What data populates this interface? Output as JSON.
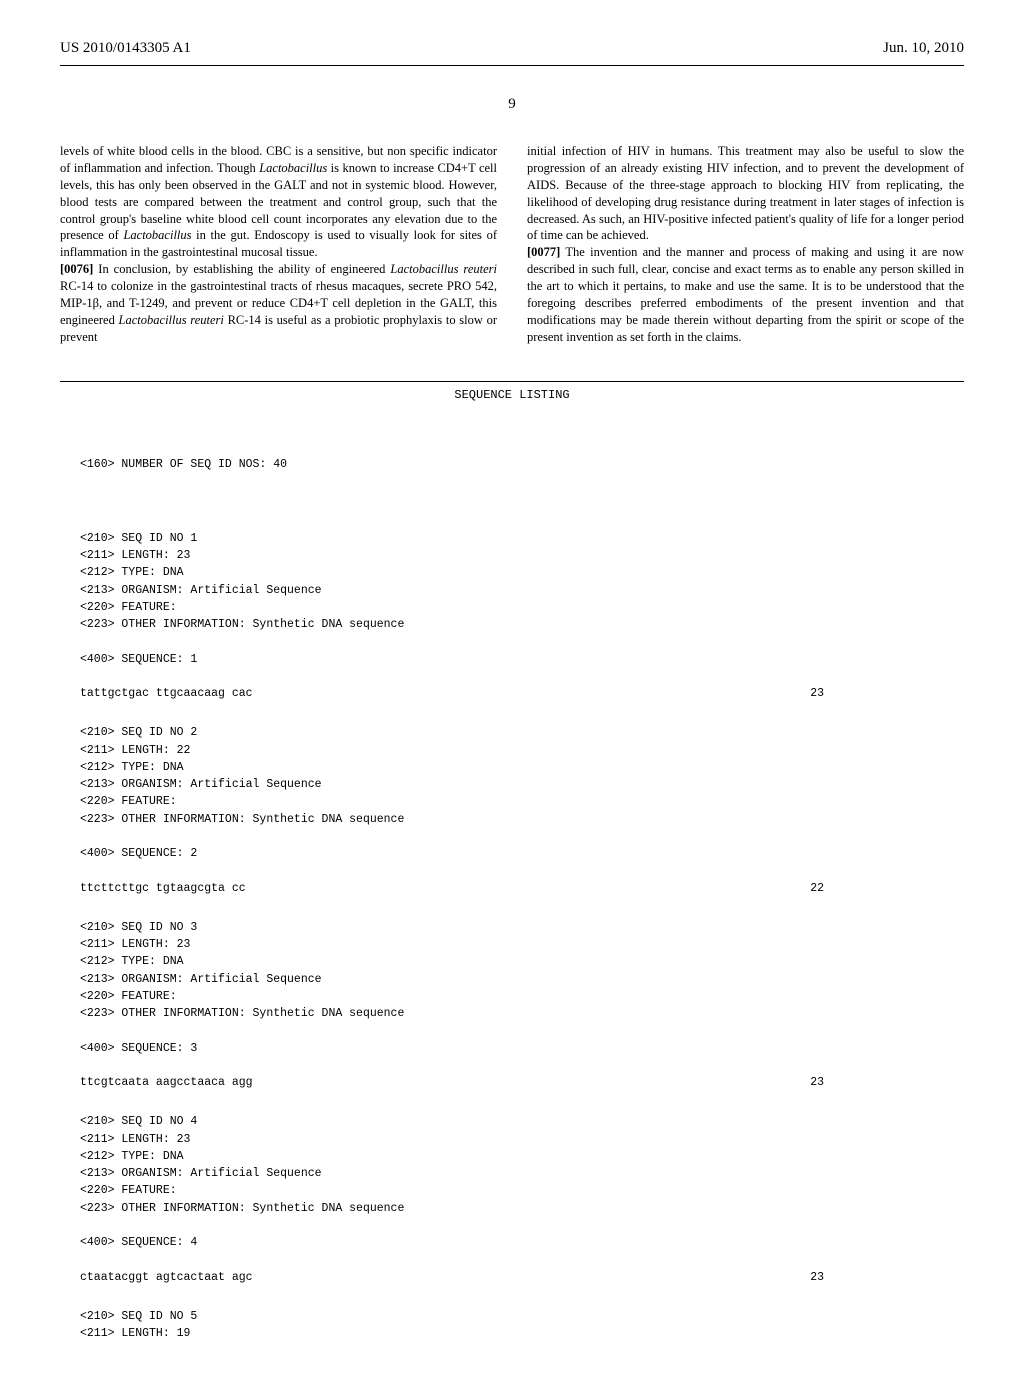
{
  "header": {
    "pub_number": "US 2010/0143305 A1",
    "pub_date": "Jun. 10, 2010"
  },
  "page_number": "9",
  "paragraphs": {
    "col1_p1": "levels of white blood cells in the blood. CBC is a sensitive, but non specific indicator of inflammation and infection. Though ",
    "col1_p1_italic1": "Lactobacillus",
    "col1_p1_cont": " is known to increase CD4+T cell levels, this has only been observed in the GALT and not in systemic blood. However, blood tests are compared between the treatment and control group, such that the control group's baseline white blood cell count incorporates any elevation due to the presence of ",
    "col1_p1_italic2": "Lactobacillus",
    "col1_p1_end": " in the gut. Endoscopy is used to visually look for sites of inflammation in the gastrointestinal mucosal tissue.",
    "col1_p2_num": "[0076]",
    "col1_p2": "   In conclusion, by establishing the ability of engineered ",
    "col1_p2_italic1": "Lactobacillus reuteri",
    "col1_p2_cont": " RC-14 to colonize in the gastrointestinal tracts of rhesus macaques, secrete PRO 542, MIP-1β, and T-1249, and prevent or reduce CD4+T cell depletion in the GALT, this engineered ",
    "col1_p2_italic2": "Lactobacillus reuteri",
    "col1_p2_end": " RC-14 is useful as a probiotic prophylaxis to slow or prevent",
    "col2_p1": "initial infection of HIV in humans. This treatment may also be useful to slow the progression of an already existing HIV infection, and to prevent the development of AIDS. Because of the three-stage approach to blocking HIV from replicating, the likelihood of developing drug resistance during treatment in later stages of infection is decreased. As such, an HIV-positive infected patient's quality of life for a longer period of time can be achieved.",
    "col2_p2_num": "[0077]",
    "col2_p2": "   The invention and the manner and process of making and using it are now described in such full, clear, concise and exact terms as to enable any person skilled in the art to which it pertains, to make and use the same. It is to be understood that the foregoing describes preferred embodiments of the present invention and that modifications may be made therein without departing from the spirit or scope of the present invention as set forth in the claims."
  },
  "sequence_listing": {
    "title": "SEQUENCE LISTING",
    "header_160": "<160> NUMBER OF SEQ ID NOS: 40",
    "sequences": [
      {
        "lines": [
          "<210> SEQ ID NO 1",
          "<211> LENGTH: 23",
          "<212> TYPE: DNA",
          "<213> ORGANISM: Artificial Sequence",
          "<220> FEATURE:",
          "<223> OTHER INFORMATION: Synthetic DNA sequence",
          "",
          "<400> SEQUENCE: 1"
        ],
        "seq_text": "tattgctgac ttgcaacaag cac",
        "seq_len": "23"
      },
      {
        "lines": [
          "<210> SEQ ID NO 2",
          "<211> LENGTH: 22",
          "<212> TYPE: DNA",
          "<213> ORGANISM: Artificial Sequence",
          "<220> FEATURE:",
          "<223> OTHER INFORMATION: Synthetic DNA sequence",
          "",
          "<400> SEQUENCE: 2"
        ],
        "seq_text": "ttcttcttgc tgtaagcgta cc",
        "seq_len": "22"
      },
      {
        "lines": [
          "<210> SEQ ID NO 3",
          "<211> LENGTH: 23",
          "<212> TYPE: DNA",
          "<213> ORGANISM: Artificial Sequence",
          "<220> FEATURE:",
          "<223> OTHER INFORMATION: Synthetic DNA sequence",
          "",
          "<400> SEQUENCE: 3"
        ],
        "seq_text": "ttcgtcaata aagcctaaca agg",
        "seq_len": "23"
      },
      {
        "lines": [
          "<210> SEQ ID NO 4",
          "<211> LENGTH: 23",
          "<212> TYPE: DNA",
          "<213> ORGANISM: Artificial Sequence",
          "<220> FEATURE:",
          "<223> OTHER INFORMATION: Synthetic DNA sequence",
          "",
          "<400> SEQUENCE: 4"
        ],
        "seq_text": "ctaatacggt agtcactaat agc",
        "seq_len": "23"
      },
      {
        "lines": [
          "<210> SEQ ID NO 5",
          "<211> LENGTH: 19"
        ],
        "seq_text": "",
        "seq_len": ""
      }
    ]
  }
}
